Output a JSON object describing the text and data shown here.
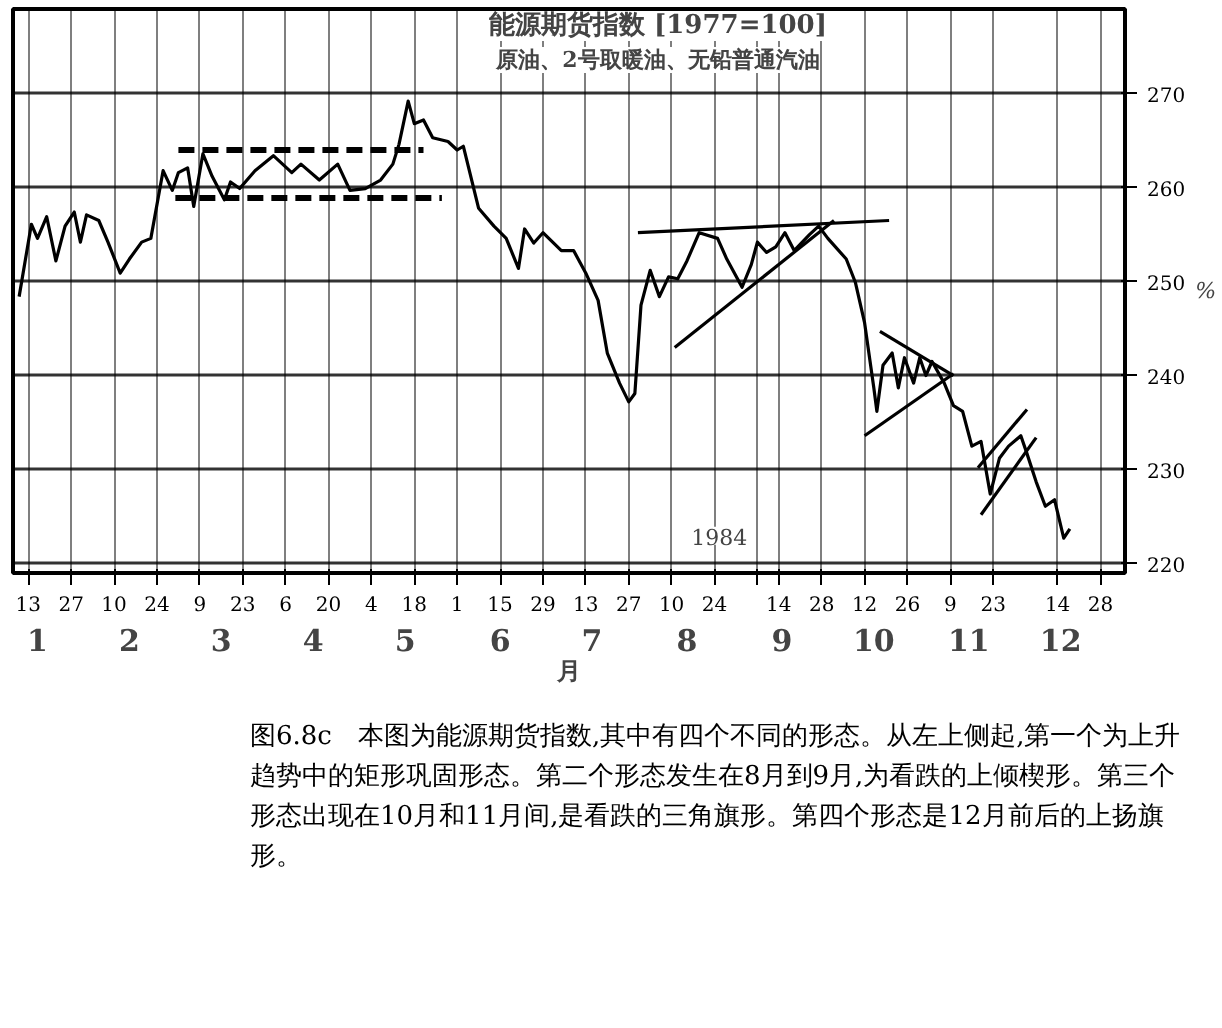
{
  "chart_data": {
    "type": "line",
    "title": "能源期货指数 [1977=100]",
    "subtitle": "原油、2号取暖油、无铅普通汽油",
    "ylabel": "%",
    "x2label": "月",
    "xlim": [
      "1984-01-08",
      "1985-01-05"
    ],
    "x2lim": [
      "1984-01-08",
      "1985-01-05"
    ],
    "ylim": [
      219,
      279
    ],
    "yticks": [
      220,
      230,
      240,
      250,
      260,
      270
    ],
    "xticks": [
      {
        "value": "1984-01-13",
        "label": "13"
      },
      {
        "value": "1984-01-27",
        "label": "27"
      },
      {
        "value": "1984-02-10",
        "label": "10"
      },
      {
        "value": "1984-02-24",
        "label": "24"
      },
      {
        "value": "1984-03-09",
        "label": "9"
      },
      {
        "value": "1984-03-23",
        "label": "23"
      },
      {
        "value": "1984-04-06",
        "label": "6"
      },
      {
        "value": "1984-04-20",
        "label": "20"
      },
      {
        "value": "1984-05-04",
        "label": "4"
      },
      {
        "value": "1984-05-18",
        "label": "18"
      },
      {
        "value": "1984-06-01",
        "label": "1"
      },
      {
        "value": "1984-06-15",
        "label": "15"
      },
      {
        "value": "1984-06-29",
        "label": "29"
      },
      {
        "value": "1984-07-13",
        "label": "13"
      },
      {
        "value": "1984-07-27",
        "label": "27"
      },
      {
        "value": "1984-08-10",
        "label": "10"
      },
      {
        "value": "1984-08-24",
        "label": "24"
      },
      {
        "value": "1984-09-07",
        "label": null
      },
      {
        "value": "1984-09-14",
        "label": "14"
      },
      {
        "value": "1984-09-28",
        "label": "28"
      },
      {
        "value": "1984-10-12",
        "label": "12"
      },
      {
        "value": "1984-10-26",
        "label": "26"
      },
      {
        "value": "1984-11-09",
        "label": "9"
      },
      {
        "value": "1984-11-23",
        "label": "23"
      },
      {
        "value": "1984-12-14",
        "label": "14"
      },
      {
        "value": "1984-12-28",
        "label": "28"
      }
    ],
    "x2ticks": [
      {
        "value": "1984-01-16",
        "label": "1"
      },
      {
        "value": "1984-02-15",
        "label": "2"
      },
      {
        "value": "1984-03-16",
        "label": "3"
      },
      {
        "value": "1984-04-15",
        "label": "4"
      },
      {
        "value": "1984-05-15",
        "label": "5"
      },
      {
        "value": "1984-06-15",
        "label": "6"
      },
      {
        "value": "1984-07-15",
        "label": "7"
      },
      {
        "value": "1984-08-15",
        "label": "8"
      },
      {
        "value": "1984-09-15",
        "label": "9"
      },
      {
        "value": "1984-10-15",
        "label": "10"
      },
      {
        "value": "1984-11-15",
        "label": "11"
      },
      {
        "value": "1984-12-15",
        "label": "12"
      }
    ],
    "grid": true,
    "series": [
      {
        "color": "#000000",
        "line_style": "solid",
        "x": [
          "1984-01-10",
          "1984-01-14",
          "1984-01-16",
          "1984-01-19",
          "1984-01-22",
          "1984-01-25",
          "1984-01-28",
          "1984-01-30",
          "1984-02-01",
          "1984-02-05",
          "1984-02-08",
          "1984-02-12",
          "1984-02-15",
          "1984-02-19",
          "1984-02-22",
          "1984-02-26",
          "1984-02-29",
          "1984-03-02",
          "1984-03-05",
          "1984-03-07",
          "1984-03-10",
          "1984-03-13",
          "1984-03-17",
          "1984-03-19",
          "1984-03-22",
          "1984-03-27",
          "1984-04-02",
          "1984-04-08",
          "1984-04-11",
          "1984-04-17",
          "1984-04-23",
          "1984-04-27",
          "1984-05-02",
          "1984-05-07",
          "1984-05-11",
          "1984-05-13",
          "1984-05-16",
          "1984-05-18",
          "1984-05-21",
          "1984-05-24",
          "1984-05-29",
          "1984-06-01",
          "1984-06-03",
          "1984-06-08",
          "1984-06-13",
          "1984-06-17",
          "1984-06-21",
          "1984-06-23",
          "1984-06-26",
          "1984-06-29",
          "1984-07-05",
          "1984-07-09",
          "1984-07-13",
          "1984-07-17",
          "1984-07-20",
          "1984-07-24",
          "1984-07-27",
          "1984-07-29",
          "1984-07-31",
          "1984-08-03",
          "1984-08-06",
          "1984-08-09",
          "1984-08-12",
          "1984-08-15",
          "1984-08-19",
          "1984-08-25",
          "1984-08-28",
          "1984-09-02",
          "1984-09-05",
          "1984-09-07",
          "1984-09-10",
          "1984-09-13",
          "1984-09-16",
          "1984-09-19",
          "1984-09-24",
          "1984-09-27",
          "1984-09-30",
          "1984-10-06",
          "1984-10-09",
          "1984-10-12",
          "1984-10-15",
          "1984-10-16",
          "1984-10-18",
          "1984-10-21",
          "1984-10-23",
          "1984-10-25",
          "1984-10-28",
          "1984-10-30",
          "1984-11-01",
          "1984-11-03",
          "1984-11-07",
          "1984-11-10",
          "1984-11-13",
          "1984-11-16",
          "1984-11-19",
          "1984-11-22",
          "1984-11-25",
          "1984-11-28",
          "1984-12-02",
          "1984-12-04",
          "1984-12-07",
          "1984-12-10",
          "1984-12-13",
          "1984-12-16",
          "1984-12-18"
        ],
        "values": [
          248.4,
          256.1,
          254.6,
          256.9,
          252.2,
          255.9,
          257.4,
          254.2,
          257.1,
          256.5,
          254.2,
          250.9,
          252.4,
          254.2,
          254.6,
          261.8,
          259.7,
          261.6,
          262.1,
          258.0,
          263.6,
          261.2,
          258.7,
          260.6,
          259.9,
          261.8,
          263.4,
          261.6,
          262.5,
          260.8,
          262.5,
          259.7,
          259.9,
          260.8,
          262.5,
          264.6,
          269.2,
          266.8,
          267.2,
          265.3,
          264.9,
          264.0,
          264.4,
          257.8,
          255.9,
          254.6,
          251.4,
          255.6,
          254.1,
          255.2,
          253.3,
          253.3,
          250.9,
          248.0,
          242.4,
          239.2,
          237.2,
          238.1,
          247.5,
          251.2,
          248.4,
          250.5,
          250.3,
          252.2,
          255.2,
          254.6,
          252.4,
          249.4,
          251.8,
          254.2,
          253.1,
          253.7,
          255.2,
          253.3,
          255.0,
          255.9,
          254.6,
          252.4,
          249.9,
          245.6,
          238.7,
          236.2,
          241.1,
          242.4,
          238.7,
          241.9,
          239.2,
          241.9,
          240.0,
          241.5,
          239.2,
          236.8,
          236.2,
          232.5,
          233.0,
          227.4,
          231.2,
          232.5,
          233.6,
          231.7,
          228.7,
          226.1,
          226.8,
          222.7,
          223.7
        ]
      },
      {
        "color": "#000000",
        "line_style": "dashed",
        "x": [
          "1984-03-02",
          "1984-05-21"
        ],
        "values": [
          264.0,
          264.0
        ]
      },
      {
        "color": "#000000",
        "line_style": "dashed",
        "x": [
          "1984-03-01",
          "1984-05-27"
        ],
        "values": [
          258.9,
          258.9
        ]
      },
      {
        "color": "#000000",
        "line_style": "solid",
        "x": [
          "1984-07-30",
          "1984-10-20"
        ],
        "values": [
          255.2,
          256.5
        ]
      },
      {
        "color": "#000000",
        "line_style": "solid",
        "x": [
          "1984-08-11",
          "1984-10-02"
        ],
        "values": [
          243.0,
          256.5
        ]
      },
      {
        "color": "#000000",
        "line_style": "solid",
        "x": [
          "1984-10-17",
          "1984-11-10"
        ],
        "values": [
          244.7,
          240.0
        ]
      },
      {
        "color": "#000000",
        "line_style": "solid",
        "x": [
          "1984-10-12",
          "1984-11-10"
        ],
        "values": [
          233.6,
          240.2
        ]
      },
      {
        "color": "#000000",
        "line_style": "solid",
        "x": [
          "1984-11-18",
          "1984-12-04"
        ],
        "values": [
          230.2,
          236.4
        ]
      },
      {
        "color": "#000000",
        "line_style": "solid",
        "x": [
          "1984-11-19",
          "1984-12-07"
        ],
        "values": [
          225.2,
          233.4
        ]
      }
    ],
    "annotations": [
      "1984",
      "图6.8c　本图为能源期货指数,其中有四个不同的形态。从左上侧起,第一个为上升趋势中的矩形巩固形态。第二个形态发生在8月到9月,为看跌的上倾楔形。第三个形态出现在10月和11月间,是看跌的三角旗形。第四个形态是12月前后的上扬旗形。"
    ]
  }
}
